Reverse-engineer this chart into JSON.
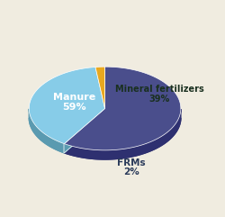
{
  "labels": [
    "Manure",
    "Mineral fertilizers",
    "FRMs"
  ],
  "values": [
    59,
    39,
    2
  ],
  "top_colors": [
    "#4a4e8c",
    "#87cce8",
    "#e8a820"
  ],
  "side_colors": [
    "#2e3070",
    "#5a9ab0",
    "#a07010"
  ],
  "frm_side_color": "#3a6050",
  "startangle_deg": 90,
  "tilt": 0.55,
  "depth": 0.12,
  "background_color": "#f0ece0",
  "manure_label_color": "white",
  "mineral_label_color": "#1a3020",
  "frms_label_color": "#2a3a5a",
  "counterclock": false
}
